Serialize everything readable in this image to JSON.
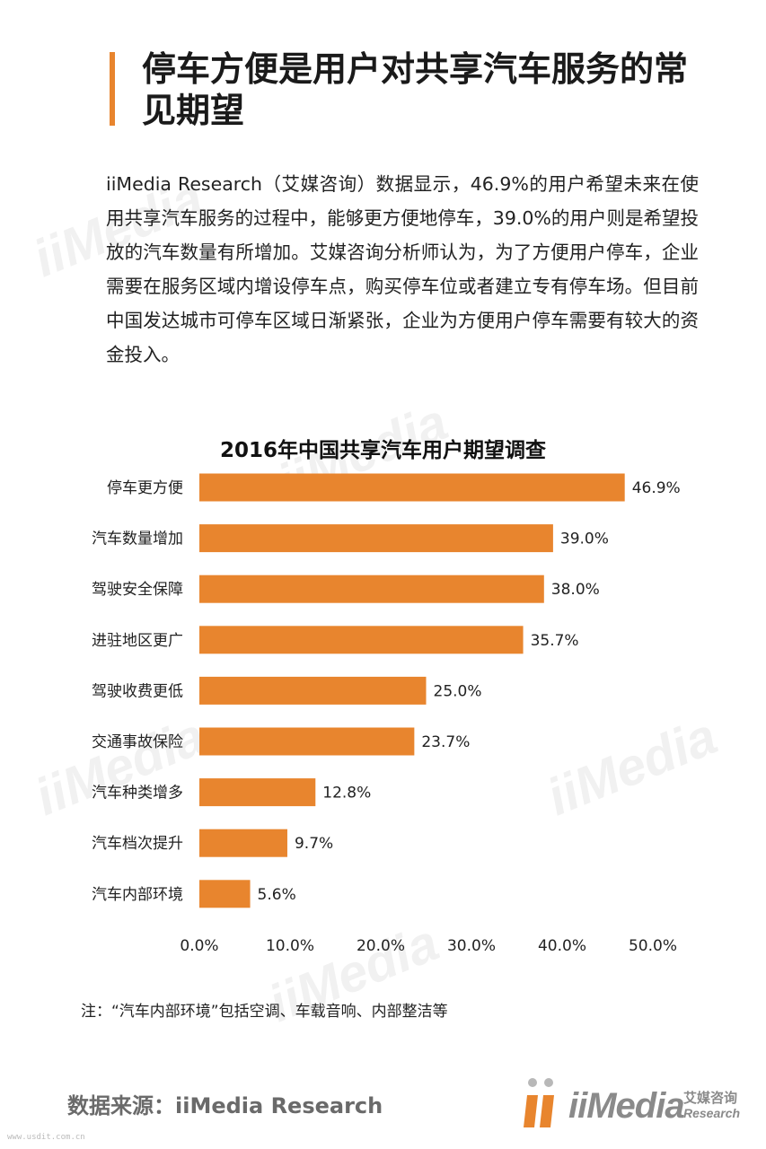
{
  "header": {
    "title": "停车方便是用户对共享汽车服务的常见期望",
    "accent_color": "#e8852e"
  },
  "body": {
    "paragraph": "iiMedia Research（艾媒咨询）数据显示，46.9%的用户希望未来在使用共享汽车服务的过程中，能够更方便地停车，39.0%的用户则是希望投放的汽车数量有所增加。艾媒咨询分析师认为，为了方便用户停车，企业需要在服务区域内增设停车点，购买停车位或者建立专有停车场。但目前中国发达城市可停车区域日渐紧张，企业为方便用户停车需要有较大的资金投入。"
  },
  "chart_data": {
    "type": "bar",
    "orientation": "horizontal",
    "title": "2016年中国共享汽车用户期望调查",
    "categories": [
      "停车更方便",
      "汽车数量增加",
      "驾驶安全保障",
      "进驻地区更广",
      "驾驶收费更低",
      "交通事故保险",
      "汽车种类增多",
      "汽车档次提升",
      "汽车内部环境"
    ],
    "values": [
      46.9,
      39.0,
      38.0,
      35.7,
      25.0,
      23.7,
      12.8,
      9.7,
      5.6
    ],
    "value_labels": [
      "46.9%",
      "39.0%",
      "38.0%",
      "35.7%",
      "25.0%",
      "23.7%",
      "12.8%",
      "9.7%",
      "5.6%"
    ],
    "xlim": [
      0,
      50
    ],
    "x_ticks": [
      "0.0%",
      "10.0%",
      "20.0%",
      "30.0%",
      "40.0%",
      "50.0%"
    ],
    "bar_color": "#e8852e",
    "grid": false
  },
  "note": "注：“汽车内部环境”包括空调、车载音响、内部整洁等",
  "source": "数据来源：iiMedia Research",
  "logo": {
    "text": "iiMedia",
    "cn": "艾媒咨询",
    "en": "Research"
  },
  "watermark": {
    "text": "iiMedia",
    "cn": "艾媒咨询",
    "en": "Research"
  },
  "footer_url": "www.usdit.com.cn"
}
